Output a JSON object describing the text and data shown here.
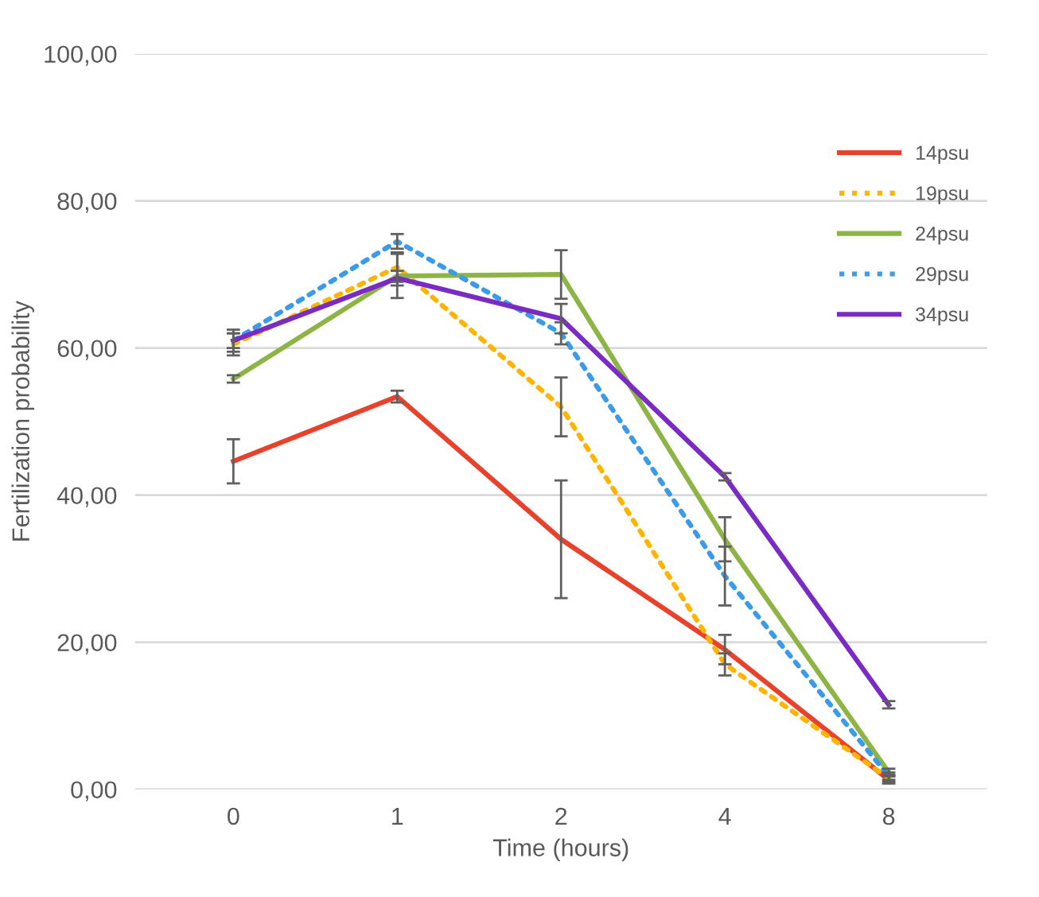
{
  "chart_data": {
    "type": "line",
    "xlabel": "Time (hours)",
    "ylabel": "Fertilization probability",
    "categories": [
      "0",
      "1",
      "2",
      "4",
      "8"
    ],
    "series": [
      {
        "name": "14psu",
        "color": "#e8412c",
        "line_style": "solid",
        "values": [
          44.6,
          53.4,
          34,
          19,
          1.3
        ],
        "errors": [
          3,
          0.8,
          8,
          2,
          0.5
        ]
      },
      {
        "name": "19psu",
        "color": "#ffb400",
        "line_style": "dotted",
        "values": [
          60.5,
          71,
          52,
          17,
          1.5
        ],
        "errors": [
          1.5,
          2,
          4,
          1.5,
          0.5
        ]
      },
      {
        "name": "24psu",
        "color": "#8db444",
        "line_style": "solid",
        "values": [
          55.8,
          69.8,
          70,
          34,
          2.3
        ],
        "errors": [
          0.5,
          3,
          3.3,
          3,
          0.5
        ]
      },
      {
        "name": "29psu",
        "color": "#3c9be6",
        "line_style": "dotted",
        "values": [
          61,
          74.5,
          62,
          29,
          1.8
        ],
        "errors": [
          1.5,
          1,
          1.5,
          4,
          0.5
        ]
      },
      {
        "name": "34psu",
        "color": "#7a2bc4",
        "line_style": "solid",
        "values": [
          61,
          69.5,
          64,
          42.5,
          11.5
        ],
        "errors": [
          1,
          1,
          2,
          0.5,
          0.5
        ]
      }
    ],
    "ylim": [
      0,
      100
    ],
    "yticks": [
      {
        "value": 0,
        "label": "0,00"
      },
      {
        "value": 20,
        "label": "20,00"
      },
      {
        "value": 40,
        "label": "40,00"
      },
      {
        "value": 60,
        "label": "60,00"
      },
      {
        "value": 80,
        "label": "80,00"
      },
      {
        "value": 100,
        "label": "100,00"
      }
    ],
    "grid": "y",
    "legend": "top right",
    "marker": "none"
  }
}
